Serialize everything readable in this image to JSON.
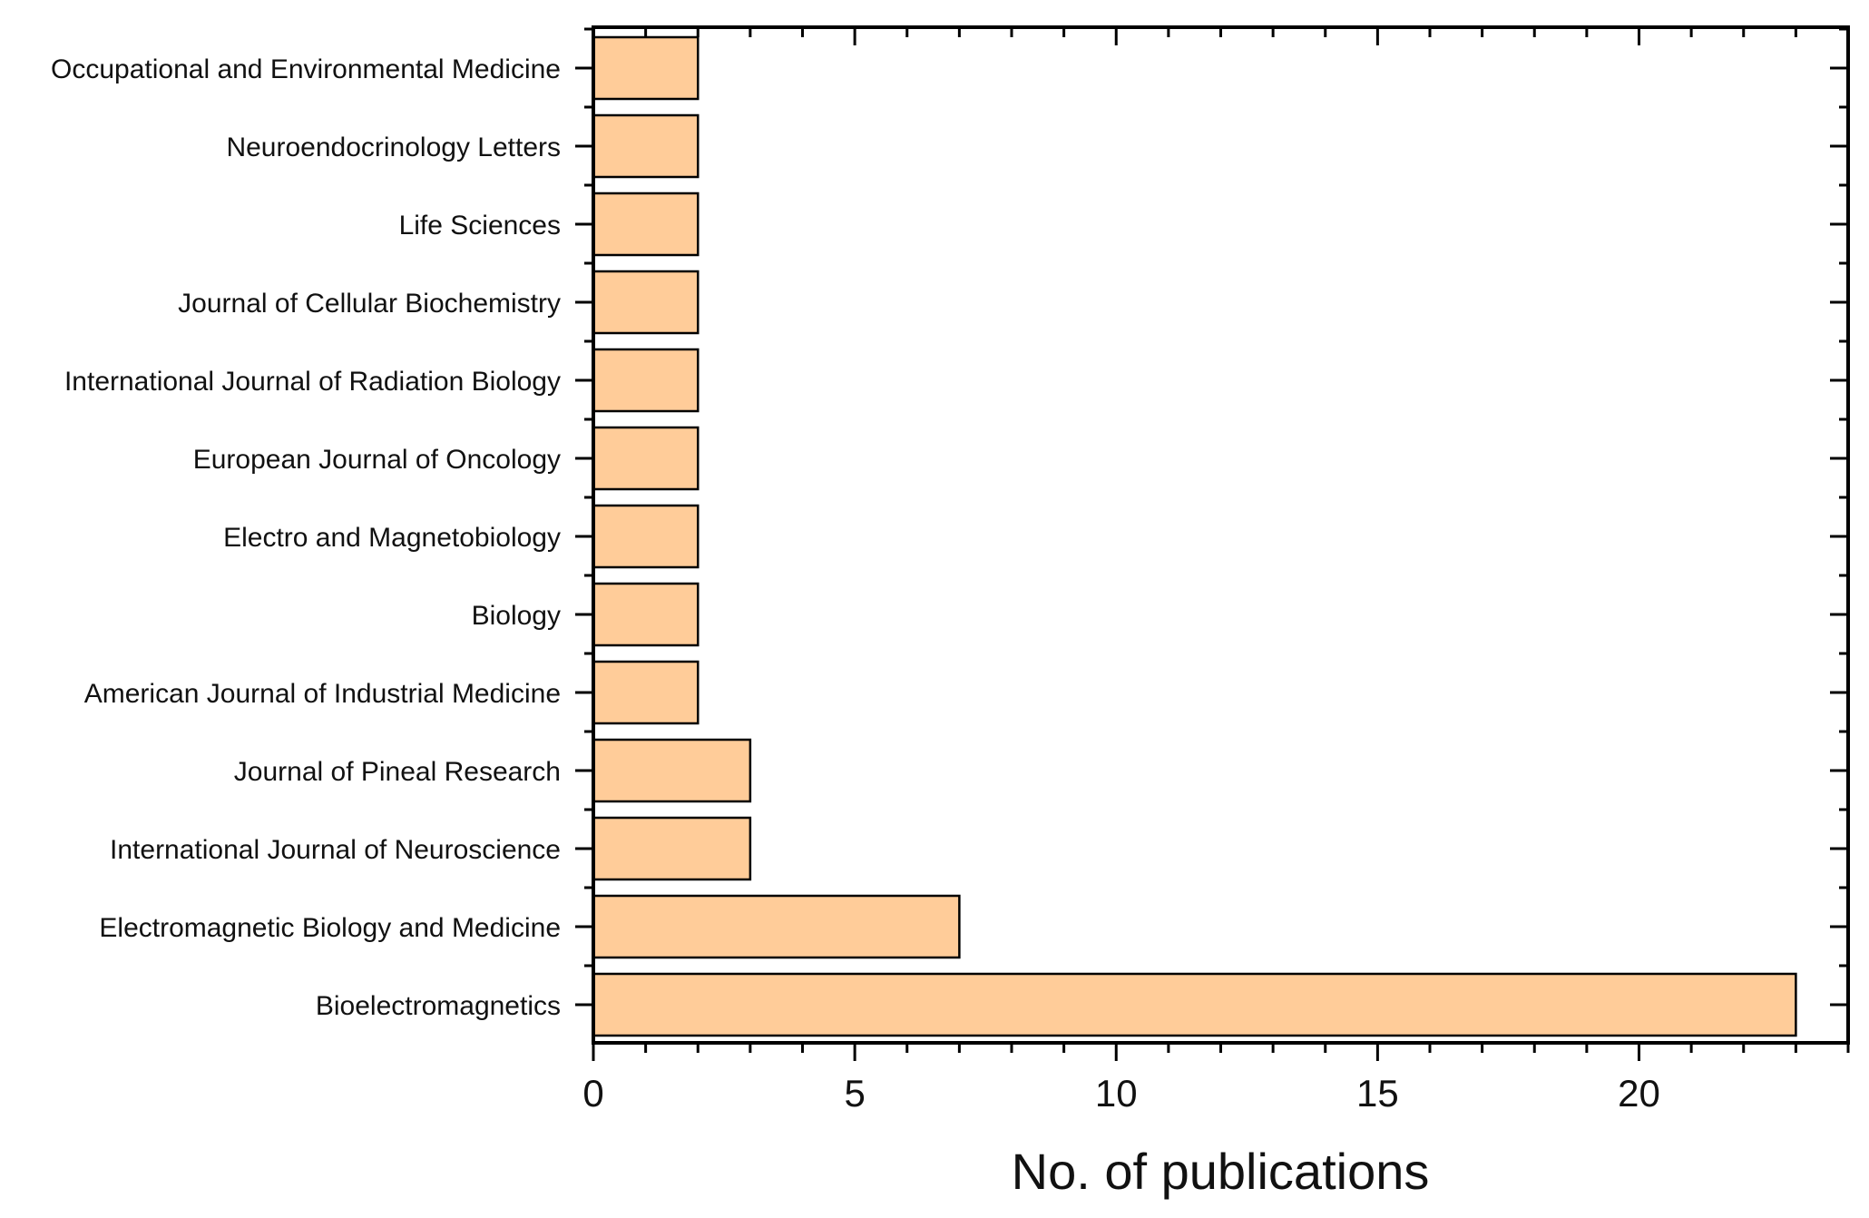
{
  "chart_data": {
    "type": "bar",
    "orientation": "horizontal",
    "categories": [
      "Occupational and Environmental Medicine",
      "Neuroendocrinology Letters",
      "Life Sciences",
      "Journal of Cellular Biochemistry",
      "International Journal of Radiation Biology",
      "European Journal of Oncology",
      "Electro and Magnetobiology",
      "Biology",
      "American Journal of Industrial Medicine",
      "Journal of Pineal Research",
      "International Journal of Neuroscience",
      "Electromagnetic Biology and Medicine",
      "Bioelectromagnetics"
    ],
    "values": [
      2,
      2,
      2,
      2,
      2,
      2,
      2,
      2,
      2,
      3,
      3,
      7,
      23
    ],
    "xlabel": "No. of publications",
    "ylabel": "",
    "xlim": [
      0,
      24
    ],
    "xticks": [
      "0",
      "5",
      "10",
      "15",
      "20"
    ],
    "x_minor_step": 1,
    "bar_color": "#FFCC99",
    "edge_color": "#000000",
    "grid": false,
    "legend": "none"
  }
}
